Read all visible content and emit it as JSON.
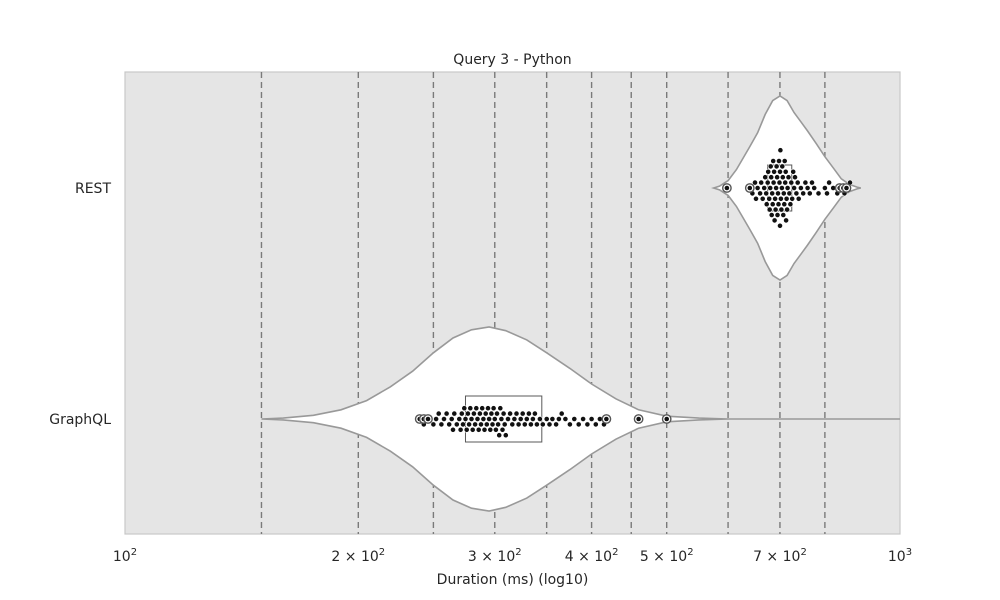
{
  "chart_data": {
    "type": "violin",
    "title": "Query 3 - Python",
    "xlabel": "Duration (ms) (log10)",
    "ylabel": "",
    "x_scale": "log10",
    "xlim": [
      100,
      1000
    ],
    "x_ticks": [
      {
        "value": 100,
        "base": "10",
        "exp": "2"
      },
      {
        "value": 200,
        "base": "2 × 10",
        "exp": "2"
      },
      {
        "value": 300,
        "base": "3 × 10",
        "exp": "2"
      },
      {
        "value": 400,
        "base": "4 × 10",
        "exp": "2"
      },
      {
        "value": 500,
        "base": "5 × 10",
        "exp": "2"
      },
      {
        "value": 700,
        "base": "7 × 10",
        "exp": "2"
      },
      {
        "value": 1000,
        "base": "10",
        "exp": "3"
      }
    ],
    "reference_lines": [
      150,
      200,
      250,
      300,
      350,
      400,
      450,
      500,
      600,
      700,
      800
    ],
    "background_color": "#e5e5e5",
    "grid": false,
    "categories": [
      "REST",
      "GraphQL"
    ],
    "groups": [
      {
        "name": "REST",
        "violin": [
          [
            575,
            0.0
          ],
          [
            585,
            0.02
          ],
          [
            600,
            0.08
          ],
          [
            615,
            0.2
          ],
          [
            625,
            0.3
          ],
          [
            640,
            0.45
          ],
          [
            655,
            0.6
          ],
          [
            670,
            0.8
          ],
          [
            685,
            0.95
          ],
          [
            700,
            1.0
          ],
          [
            715,
            0.95
          ],
          [
            730,
            0.82
          ],
          [
            745,
            0.72
          ],
          [
            760,
            0.62
          ],
          [
            780,
            0.48
          ],
          [
            800,
            0.34
          ],
          [
            820,
            0.22
          ],
          [
            840,
            0.1
          ],
          [
            860,
            0.04
          ],
          [
            880,
            0.01
          ],
          [
            890,
            0.0
          ]
        ],
        "box": {
          "q1": 675,
          "median": 700,
          "q3": 725
        },
        "points": [
          598,
          640,
          645,
          650,
          652,
          655,
          660,
          662,
          665,
          668,
          670,
          672,
          673,
          675,
          676,
          678,
          679,
          680,
          681,
          682,
          683,
          684,
          685,
          686,
          687,
          688,
          689,
          690,
          691,
          692,
          693,
          694,
          695,
          696,
          697,
          698,
          699,
          700,
          700,
          701,
          702,
          703,
          704,
          705,
          706,
          707,
          708,
          709,
          710,
          711,
          712,
          713,
          714,
          715,
          716,
          718,
          720,
          722,
          724,
          726,
          728,
          730,
          732,
          735,
          738,
          740,
          745,
          750,
          755,
          760,
          765,
          770,
          775,
          785,
          800,
          805,
          810,
          820,
          830,
          840,
          848,
          855,
          862
        ],
        "outliers": [
          598,
          640,
          836,
          845,
          853
        ]
      },
      {
        "name": "GraphQL",
        "violin": [
          [
            150,
            0.0
          ],
          [
            160,
            0.01
          ],
          [
            175,
            0.04
          ],
          [
            190,
            0.1
          ],
          [
            205,
            0.2
          ],
          [
            220,
            0.35
          ],
          [
            235,
            0.52
          ],
          [
            250,
            0.72
          ],
          [
            265,
            0.88
          ],
          [
            280,
            0.97
          ],
          [
            295,
            1.0
          ],
          [
            310,
            0.96
          ],
          [
            330,
            0.86
          ],
          [
            350,
            0.72
          ],
          [
            375,
            0.55
          ],
          [
            400,
            0.38
          ],
          [
            430,
            0.22
          ],
          [
            460,
            0.1
          ],
          [
            500,
            0.03
          ],
          [
            550,
            0.01
          ],
          [
            600,
            0.0
          ],
          [
            1000,
            0.0
          ]
        ],
        "box": {
          "q1": 275,
          "median": 300,
          "q3": 345
        },
        "points": [
          240,
          243,
          246,
          250,
          252,
          254,
          256,
          258,
          260,
          262,
          264,
          265,
          266,
          268,
          270,
          271,
          272,
          273,
          274,
          275,
          276,
          277,
          278,
          279,
          280,
          281,
          282,
          283,
          284,
          285,
          286,
          287,
          288,
          289,
          290,
          291,
          292,
          293,
          294,
          295,
          296,
          297,
          298,
          299,
          300,
          301,
          302,
          303,
          304,
          305,
          306,
          307,
          308,
          309,
          310,
          312,
          314,
          316,
          318,
          320,
          322,
          324,
          326,
          328,
          330,
          332,
          334,
          336,
          338,
          340,
          343,
          346,
          350,
          353,
          356,
          360,
          363,
          366,
          370,
          375,
          380,
          385,
          390,
          395,
          400,
          405,
          410,
          415,
          420,
          460,
          500
        ],
        "outliers": [
          240,
          243,
          246,
          418,
          460,
          500
        ]
      }
    ]
  }
}
